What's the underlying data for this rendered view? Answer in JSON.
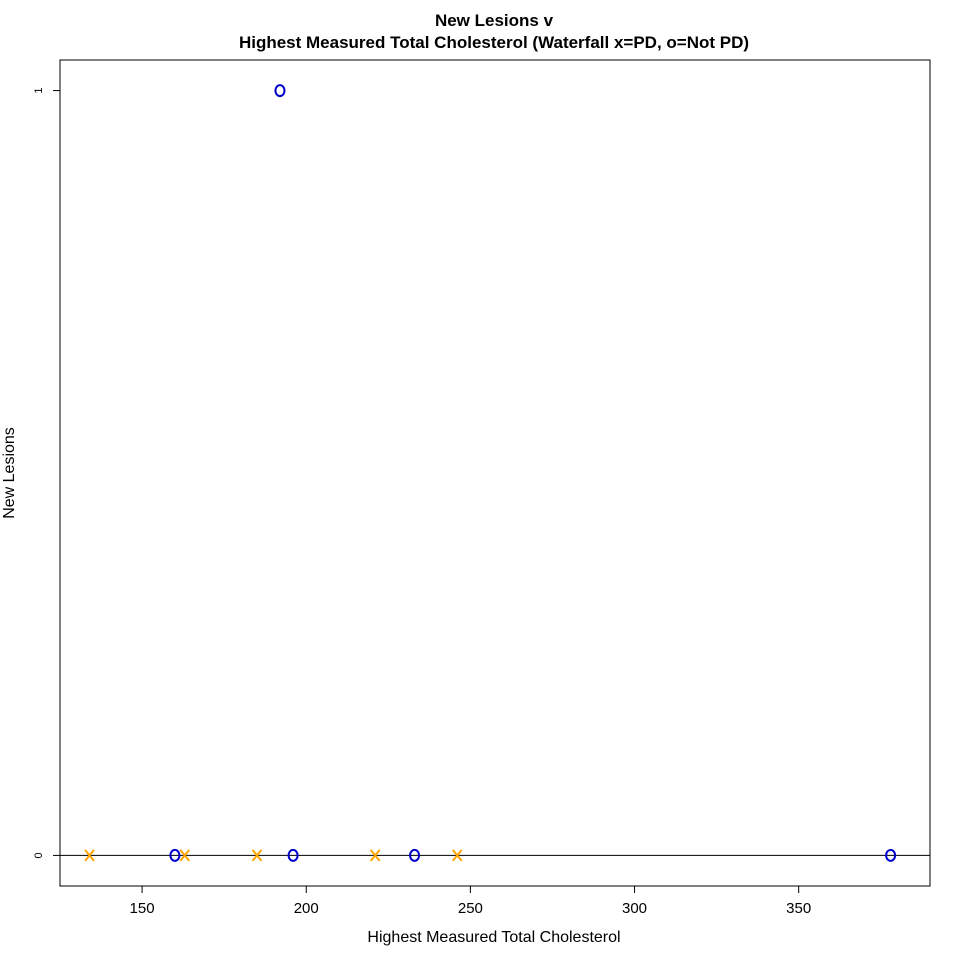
{
  "chart_data": {
    "type": "scatter",
    "title": "New Lesions v",
    "subtitle": "Highest Measured Total Cholesterol (Waterfall x=PD, o=Not PD)",
    "xlabel": "Highest Measured Total Cholesterol",
    "ylabel": "New Lesions",
    "xlim": [
      125,
      390
    ],
    "ylim": [
      -0.04,
      1.04
    ],
    "x_ticks": [
      150,
      200,
      250,
      300,
      350
    ],
    "y_ticks": [
      0,
      1
    ],
    "reference_line_y": 0,
    "grid": false,
    "series": [
      {
        "marker": "x",
        "color": "#FFA500",
        "points": [
          {
            "x": 134,
            "y": 0
          },
          {
            "x": 163,
            "y": 0
          },
          {
            "x": 185,
            "y": 0
          },
          {
            "x": 221,
            "y": 0
          },
          {
            "x": 246,
            "y": 0
          }
        ]
      },
      {
        "marker": "o",
        "color": "#0000CD",
        "points": [
          {
            "x": 192,
            "y": 1
          },
          {
            "x": 160,
            "y": 0
          },
          {
            "x": 196,
            "y": 0
          },
          {
            "x": 233,
            "y": 0
          },
          {
            "x": 378,
            "y": 0
          }
        ]
      }
    ]
  }
}
